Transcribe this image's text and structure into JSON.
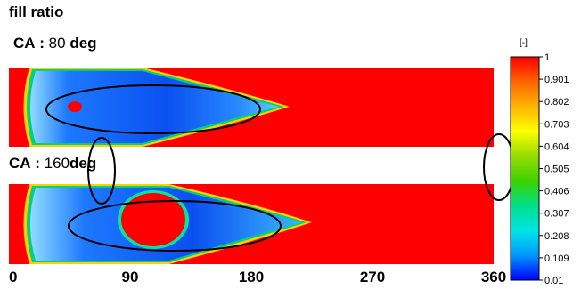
{
  "title": "fill ratio",
  "panels": [
    {
      "ca_prefix": "CA : ",
      "ca_value": "80",
      "ca_unit": "deg"
    },
    {
      "ca_prefix": "CA : ",
      "ca_value": "160",
      "ca_unit": "deg"
    }
  ],
  "chart_data": {
    "type": "heatmap",
    "title": "fill ratio",
    "x_ticks": [
      "0",
      "90",
      "180",
      "270",
      "360"
    ],
    "x_range": [
      0,
      360
    ],
    "colorbar": {
      "unit": "[-]",
      "range": [
        0.01,
        1
      ],
      "ticks": [
        "1",
        "0.901",
        "0.802",
        "0.703",
        "0.604",
        "0.505",
        "0.406",
        "0.307",
        "0.208",
        "0.109",
        "0.01"
      ],
      "colors": [
        "#0000ff",
        "#0096ff",
        "#00e5e5",
        "#00e08c",
        "#3cd200",
        "#96dc00",
        "#ffff00",
        "#ffb400",
        "#ff6400",
        "#ff0000"
      ]
    },
    "panels": [
      {
        "crank_angle_deg": 80,
        "liquid_front_x": 215
      },
      {
        "crank_angle_deg": 160,
        "liquid_front_x": 240
      }
    ],
    "annotations": [
      "ellipse",
      "ellipse",
      "ellipse",
      "ellipse",
      "ellipse"
    ]
  }
}
